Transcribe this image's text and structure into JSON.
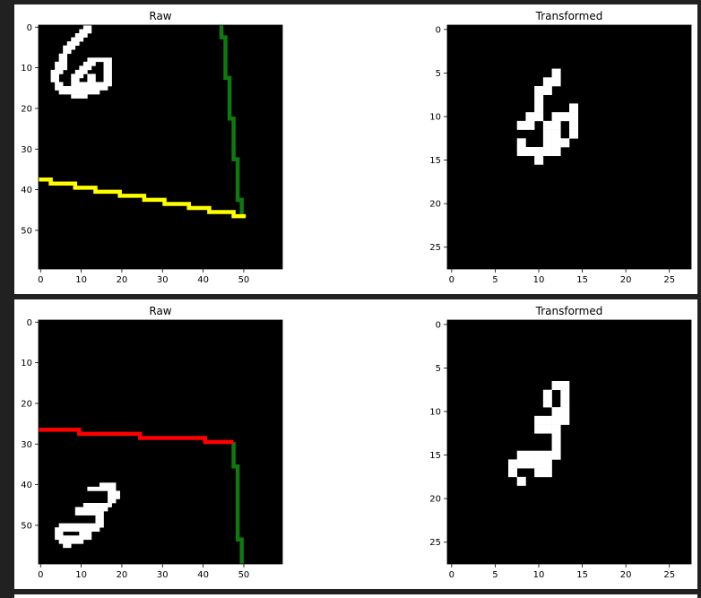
{
  "colors": {
    "background": "#212121",
    "panel": "#ffffff",
    "image_background": "#000000",
    "digit": "#ffffff",
    "vertical_trace": "#0e7a0e",
    "horizontal_trace_row1": "#ffff00",
    "horizontal_trace_row2": "#ff0000"
  },
  "chart_data": [
    {
      "type": "heatmap",
      "title": "Raw",
      "xlim": [
        0,
        60
      ],
      "ylim": [
        60,
        0
      ],
      "xticks": [
        0,
        10,
        20,
        30,
        40,
        50
      ],
      "yticks": [
        0,
        10,
        20,
        30,
        40,
        50
      ],
      "xtick_labels": [
        "0",
        "10",
        "20",
        "30",
        "40",
        "50"
      ],
      "ytick_labels": [
        "0",
        "10",
        "20",
        "30",
        "40",
        "50"
      ],
      "pixels": [
        [
          11,
          0
        ],
        [
          12,
          0
        ],
        [
          10,
          1
        ],
        [
          11,
          1
        ],
        [
          12,
          1
        ],
        [
          9,
          2
        ],
        [
          10,
          2
        ],
        [
          11,
          2
        ],
        [
          8,
          3
        ],
        [
          9,
          3
        ],
        [
          10,
          3
        ],
        [
          7,
          4
        ],
        [
          8,
          4
        ],
        [
          9,
          4
        ],
        [
          6,
          5
        ],
        [
          7,
          5
        ],
        [
          8,
          5
        ],
        [
          6,
          6
        ],
        [
          7,
          6
        ],
        [
          5,
          7
        ],
        [
          6,
          7
        ],
        [
          5,
          8
        ],
        [
          6,
          8
        ],
        [
          12,
          8
        ],
        [
          13,
          8
        ],
        [
          14,
          8
        ],
        [
          15,
          8
        ],
        [
          16,
          8
        ],
        [
          17,
          8
        ],
        [
          4,
          9
        ],
        [
          5,
          9
        ],
        [
          6,
          9
        ],
        [
          11,
          9
        ],
        [
          12,
          9
        ],
        [
          13,
          9
        ],
        [
          16,
          9
        ],
        [
          17,
          9
        ],
        [
          4,
          10
        ],
        [
          5,
          10
        ],
        [
          6,
          10
        ],
        [
          10,
          10
        ],
        [
          11,
          10
        ],
        [
          12,
          10
        ],
        [
          16,
          10
        ],
        [
          17,
          10
        ],
        [
          3,
          11
        ],
        [
          4,
          11
        ],
        [
          5,
          11
        ],
        [
          9,
          11
        ],
        [
          10,
          11
        ],
        [
          11,
          11
        ],
        [
          16,
          11
        ],
        [
          17,
          11
        ],
        [
          3,
          12
        ],
        [
          4,
          12
        ],
        [
          8,
          12
        ],
        [
          9,
          12
        ],
        [
          10,
          12
        ],
        [
          12,
          12
        ],
        [
          13,
          12
        ],
        [
          16,
          12
        ],
        [
          17,
          12
        ],
        [
          3,
          13
        ],
        [
          4,
          13
        ],
        [
          8,
          13
        ],
        [
          9,
          13
        ],
        [
          12,
          13
        ],
        [
          13,
          13
        ],
        [
          16,
          13
        ],
        [
          17,
          13
        ],
        [
          4,
          14
        ],
        [
          5,
          14
        ],
        [
          8,
          14
        ],
        [
          9,
          14
        ],
        [
          10,
          14
        ],
        [
          11,
          14
        ],
        [
          12,
          14
        ],
        [
          13,
          14
        ],
        [
          14,
          14
        ],
        [
          15,
          14
        ],
        [
          16,
          14
        ],
        [
          17,
          14
        ],
        [
          4,
          15
        ],
        [
          5,
          15
        ],
        [
          6,
          15
        ],
        [
          7,
          15
        ],
        [
          8,
          15
        ],
        [
          9,
          15
        ],
        [
          10,
          15
        ],
        [
          11,
          15
        ],
        [
          12,
          15
        ],
        [
          13,
          15
        ],
        [
          14,
          15
        ],
        [
          15,
          15
        ],
        [
          16,
          15
        ],
        [
          5,
          16
        ],
        [
          6,
          16
        ],
        [
          7,
          16
        ],
        [
          8,
          16
        ],
        [
          9,
          16
        ],
        [
          10,
          16
        ],
        [
          11,
          16
        ],
        [
          12,
          16
        ],
        [
          13,
          16
        ],
        [
          14,
          16
        ],
        [
          8,
          17
        ],
        [
          9,
          17
        ],
        [
          10,
          17
        ],
        [
          11,
          17
        ]
      ],
      "traces": [
        {
          "name": "vertical",
          "color": "#0e7a0e",
          "points": [
            [
              45,
              0
            ],
            [
              45,
              3
            ],
            [
              46,
              3
            ],
            [
              46,
              13
            ],
            [
              47,
              13
            ],
            [
              47,
              23
            ],
            [
              48,
              23
            ],
            [
              48,
              33
            ],
            [
              49,
              33
            ],
            [
              49,
              43
            ],
            [
              50,
              43
            ],
            [
              50,
              47
            ]
          ]
        },
        {
          "name": "horizontal",
          "color": "#ffff00",
          "points": [
            [
              0,
              38
            ],
            [
              3,
              38
            ],
            [
              3,
              39
            ],
            [
              9,
              39
            ],
            [
              9,
              40
            ],
            [
              14,
              40
            ],
            [
              14,
              41
            ],
            [
              20,
              41
            ],
            [
              20,
              42
            ],
            [
              26,
              42
            ],
            [
              26,
              43
            ],
            [
              31,
              43
            ],
            [
              31,
              44
            ],
            [
              37,
              44
            ],
            [
              37,
              45
            ],
            [
              42,
              45
            ],
            [
              42,
              46
            ],
            [
              48,
              46
            ],
            [
              48,
              47
            ],
            [
              51,
              47
            ]
          ]
        }
      ]
    },
    {
      "type": "heatmap",
      "title": "Transformed",
      "xlim": [
        0,
        28
      ],
      "ylim": [
        28,
        0
      ],
      "xticks": [
        0,
        5,
        10,
        15,
        20,
        25
      ],
      "yticks": [
        0,
        5,
        10,
        15,
        20,
        25
      ],
      "xtick_labels": [
        "0",
        "5",
        "10",
        "15",
        "20",
        "25"
      ],
      "ytick_labels": [
        "0",
        "5",
        "10",
        "15",
        "20",
        "25"
      ],
      "pixels": [
        [
          12,
          5
        ],
        [
          11,
          6
        ],
        [
          12,
          6
        ],
        [
          10,
          7
        ],
        [
          11,
          7
        ],
        [
          10,
          8
        ],
        [
          10,
          9
        ],
        [
          14,
          9
        ],
        [
          9,
          10
        ],
        [
          10,
          10
        ],
        [
          12,
          10
        ],
        [
          13,
          10
        ],
        [
          14,
          10
        ],
        [
          8,
          11
        ],
        [
          9,
          11
        ],
        [
          11,
          11
        ],
        [
          12,
          11
        ],
        [
          14,
          11
        ],
        [
          11,
          12
        ],
        [
          12,
          12
        ],
        [
          14,
          12
        ],
        [
          8,
          13
        ],
        [
          11,
          13
        ],
        [
          12,
          13
        ],
        [
          13,
          13
        ],
        [
          8,
          14
        ],
        [
          9,
          14
        ],
        [
          10,
          14
        ],
        [
          11,
          14
        ],
        [
          12,
          14
        ],
        [
          10,
          15
        ]
      ],
      "traces": []
    },
    {
      "type": "heatmap",
      "title": "Raw",
      "xlim": [
        0,
        60
      ],
      "ylim": [
        60,
        0
      ],
      "xticks": [
        0,
        10,
        20,
        30,
        40,
        50
      ],
      "yticks": [
        0,
        10,
        20,
        30,
        40,
        50
      ],
      "xtick_labels": [
        "0",
        "10",
        "20",
        "30",
        "40",
        "50"
      ],
      "ytick_labels": [
        "0",
        "10",
        "20",
        "30",
        "40",
        "50"
      ],
      "pixels": [
        [
          15,
          40
        ],
        [
          16,
          40
        ],
        [
          17,
          40
        ],
        [
          18,
          40
        ],
        [
          12,
          41
        ],
        [
          13,
          41
        ],
        [
          14,
          41
        ],
        [
          15,
          41
        ],
        [
          16,
          41
        ],
        [
          17,
          41
        ],
        [
          18,
          41
        ],
        [
          17,
          42
        ],
        [
          18,
          42
        ],
        [
          19,
          42
        ],
        [
          17,
          43
        ],
        [
          18,
          43
        ],
        [
          19,
          43
        ],
        [
          17,
          44
        ],
        [
          18,
          44
        ],
        [
          11,
          45
        ],
        [
          12,
          45
        ],
        [
          13,
          45
        ],
        [
          14,
          45
        ],
        [
          15,
          45
        ],
        [
          16,
          45
        ],
        [
          17,
          45
        ],
        [
          9,
          46
        ],
        [
          10,
          46
        ],
        [
          11,
          46
        ],
        [
          12,
          46
        ],
        [
          13,
          46
        ],
        [
          14,
          46
        ],
        [
          15,
          46
        ],
        [
          16,
          46
        ],
        [
          9,
          47
        ],
        [
          10,
          47
        ],
        [
          11,
          47
        ],
        [
          12,
          47
        ],
        [
          13,
          47
        ],
        [
          14,
          47
        ],
        [
          15,
          47
        ],
        [
          14,
          48
        ],
        [
          15,
          48
        ],
        [
          14,
          49
        ],
        [
          15,
          49
        ],
        [
          5,
          50
        ],
        [
          6,
          50
        ],
        [
          7,
          50
        ],
        [
          8,
          50
        ],
        [
          9,
          50
        ],
        [
          10,
          50
        ],
        [
          11,
          50
        ],
        [
          12,
          50
        ],
        [
          13,
          50
        ],
        [
          14,
          50
        ],
        [
          15,
          50
        ],
        [
          4,
          51
        ],
        [
          5,
          51
        ],
        [
          6,
          51
        ],
        [
          7,
          51
        ],
        [
          8,
          51
        ],
        [
          9,
          51
        ],
        [
          10,
          51
        ],
        [
          11,
          51
        ],
        [
          12,
          51
        ],
        [
          13,
          51
        ],
        [
          14,
          51
        ],
        [
          4,
          52
        ],
        [
          5,
          52
        ],
        [
          10,
          52
        ],
        [
          11,
          52
        ],
        [
          12,
          52
        ],
        [
          4,
          53
        ],
        [
          5,
          53
        ],
        [
          6,
          53
        ],
        [
          7,
          53
        ],
        [
          8,
          53
        ],
        [
          9,
          53
        ],
        [
          10,
          53
        ],
        [
          11,
          53
        ],
        [
          12,
          53
        ],
        [
          5,
          54
        ],
        [
          6,
          54
        ],
        [
          7,
          54
        ],
        [
          8,
          54
        ],
        [
          9,
          54
        ],
        [
          10,
          54
        ],
        [
          6,
          55
        ],
        [
          7,
          55
        ]
      ],
      "traces": [
        {
          "name": "vertical",
          "color": "#0e7a0e",
          "points": [
            [
              48,
              30
            ],
            [
              48,
              36
            ],
            [
              49,
              36
            ],
            [
              49,
              54
            ],
            [
              50,
              54
            ],
            [
              50,
              60
            ]
          ]
        },
        {
          "name": "horizontal",
          "color": "#ff0000",
          "points": [
            [
              0,
              27
            ],
            [
              10,
              27
            ],
            [
              10,
              28
            ],
            [
              25,
              28
            ],
            [
              25,
              29
            ],
            [
              41,
              29
            ],
            [
              41,
              30
            ],
            [
              48,
              30
            ]
          ]
        }
      ]
    },
    {
      "type": "heatmap",
      "title": "Transformed",
      "xlim": [
        0,
        28
      ],
      "ylim": [
        28,
        0
      ],
      "xticks": [
        0,
        5,
        10,
        15,
        20,
        25
      ],
      "yticks": [
        0,
        5,
        10,
        15,
        20,
        25
      ],
      "xtick_labels": [
        "0",
        "5",
        "10",
        "15",
        "20",
        "25"
      ],
      "ytick_labels": [
        "0",
        "5",
        "10",
        "15",
        "20",
        "25"
      ],
      "pixels": [
        [
          12,
          7
        ],
        [
          13,
          7
        ],
        [
          11,
          8
        ],
        [
          13,
          8
        ],
        [
          11,
          9
        ],
        [
          13,
          9
        ],
        [
          12,
          10
        ],
        [
          13,
          10
        ],
        [
          10,
          11
        ],
        [
          11,
          11
        ],
        [
          12,
          11
        ],
        [
          13,
          11
        ],
        [
          10,
          12
        ],
        [
          11,
          12
        ],
        [
          12,
          12
        ],
        [
          12,
          13
        ],
        [
          12,
          14
        ],
        [
          8,
          15
        ],
        [
          9,
          15
        ],
        [
          10,
          15
        ],
        [
          11,
          15
        ],
        [
          12,
          15
        ],
        [
          7,
          16
        ],
        [
          8,
          16
        ],
        [
          9,
          16
        ],
        [
          10,
          16
        ],
        [
          11,
          16
        ],
        [
          7,
          17
        ],
        [
          10,
          17
        ],
        [
          11,
          17
        ],
        [
          8,
          18
        ]
      ],
      "traces": []
    }
  ]
}
